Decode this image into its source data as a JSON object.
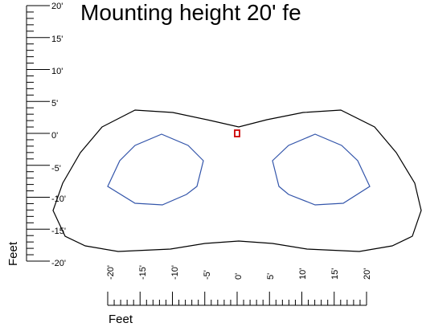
{
  "title": "Mounting height 20' fe",
  "y_axis": {
    "title": "Feet",
    "ticks": [
      "20'",
      "15'",
      "10'",
      "5'",
      "0'",
      "-5'",
      "-10'",
      "-15'",
      "-20'"
    ]
  },
  "x_axis": {
    "title": "Feet",
    "ticks": [
      "-20'",
      "-15'",
      "-10'",
      "-5'",
      "0'",
      "5'",
      "10'",
      "15'",
      "20'"
    ]
  },
  "colors": {
    "outer_contour": "#000000",
    "inner_contour": "#3355aa",
    "luminaire": "#cc0000"
  }
}
